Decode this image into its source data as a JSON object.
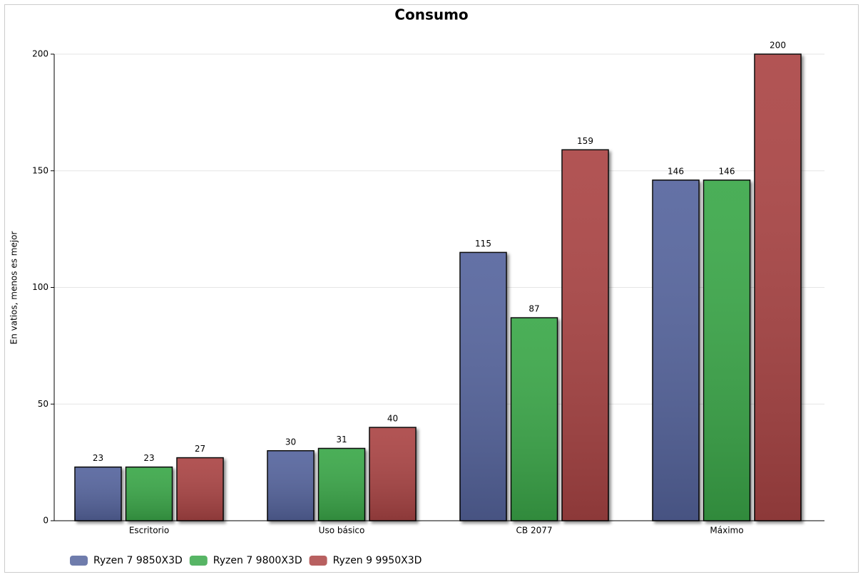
{
  "chart_data": {
    "type": "bar",
    "title": "Consumo",
    "y_label": "En vatios, menos es mejor",
    "categories": [
      "Escritorio",
      "Uso básico",
      "CB 2077",
      "Máximo"
    ],
    "series": [
      {
        "name": "Ryzen 7 9850X3D",
        "color": "#56659e",
        "values": [
          23,
          30,
          115,
          146
        ]
      },
      {
        "name": "Ryzen 7 9800X3D",
        "color": "#3aa84a",
        "values": [
          23,
          31,
          87,
          146
        ]
      },
      {
        "name": "Ryzen 9 9950X3D",
        "color": "#ab4444",
        "values": [
          27,
          40,
          159,
          200
        ]
      }
    ],
    "ylim": [
      0,
      200
    ],
    "yticks": [
      0,
      50,
      100,
      150,
      200
    ],
    "grid": true
  }
}
